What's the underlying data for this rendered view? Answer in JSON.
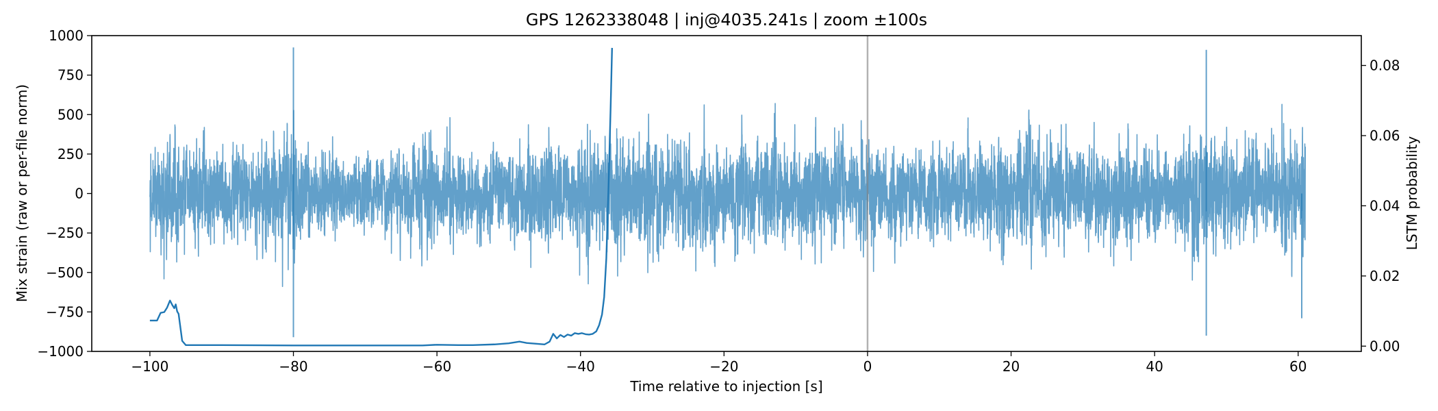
{
  "chart_data": {
    "type": "line",
    "title": "GPS 1262338048 | inj@4035.241s | zoom ±100s",
    "xlabel": "Time relative to injection [s]",
    "ylabel_left": "Mix strain (raw or per-file norm)",
    "ylabel_right": "LSTM probability",
    "xlim": [
      -108.1,
      68.8
    ],
    "ylim_left": [
      -1000,
      1000
    ],
    "ylim_right": [
      -0.0015,
      0.0885
    ],
    "x_ticks": [
      -100,
      -80,
      -60,
      -40,
      -20,
      0,
      20,
      40,
      60
    ],
    "y_left_ticks": [
      -1000,
      -750,
      -500,
      -250,
      0,
      250,
      500,
      750,
      1000
    ],
    "y_right_ticks": [
      0.0,
      0.02,
      0.04,
      0.06,
      0.08
    ],
    "x_tick_labels": [
      "−100",
      "−80",
      "−60",
      "−40",
      "−20",
      "0",
      "20",
      "40",
      "60"
    ],
    "y_left_tick_labels": [
      "−1000",
      "−750",
      "−500",
      "−250",
      "0",
      "250",
      "500",
      "750",
      "1000"
    ],
    "y_right_tick_labels": [
      "0.00",
      "0.02",
      "0.04",
      "0.06",
      "0.08"
    ],
    "injection_marker_x": 0,
    "grid": false,
    "series": [
      {
        "axis": "left",
        "color": "#1f77b4",
        "opacity": 0.7,
        "x_range": [
          -100,
          61
        ],
        "typical_amplitude": 300,
        "burst_envelope": [
          [
            -100,
            450
          ],
          [
            -99,
            700
          ],
          [
            -96,
            600
          ],
          [
            -90,
            550
          ],
          [
            -88,
            400
          ],
          [
            -85,
            500
          ],
          [
            -80.2,
            950
          ],
          [
            -79.5,
            520
          ],
          [
            -75,
            450
          ],
          [
            -70,
            400
          ],
          [
            -65,
            500
          ],
          [
            -62,
            650
          ],
          [
            -58,
            520
          ],
          [
            -55,
            450
          ],
          [
            -50,
            500
          ],
          [
            -46,
            620
          ],
          [
            -43,
            480
          ],
          [
            -38,
            650
          ],
          [
            -35,
            720
          ],
          [
            -32,
            650
          ],
          [
            -25,
            620
          ],
          [
            -18,
            680
          ],
          [
            -10,
            600
          ],
          [
            -5,
            650
          ],
          [
            1,
            580
          ],
          [
            5,
            520
          ],
          [
            12,
            480
          ],
          [
            18,
            600
          ],
          [
            20,
            820
          ],
          [
            22,
            780
          ],
          [
            24,
            700
          ],
          [
            27,
            620
          ],
          [
            30,
            520
          ],
          [
            36,
            560
          ],
          [
            42,
            450
          ],
          [
            46,
            880
          ],
          [
            47.3,
            1000
          ],
          [
            48,
            700
          ],
          [
            52,
            480
          ],
          [
            56,
            600
          ],
          [
            58,
            560
          ],
          [
            61,
            750
          ]
        ],
        "spikes": [
          {
            "x": -80,
            "y": 925
          },
          {
            "x": -80,
            "y": -910
          },
          {
            "x": 47.2,
            "y": 910
          },
          {
            "x": 47.2,
            "y": -900
          },
          {
            "x": 60.5,
            "y": -790
          }
        ]
      },
      {
        "axis": "right",
        "color": "#1f77b4",
        "x": [
          -100,
          -99,
          -98.5,
          -98,
          -97.6,
          -97.2,
          -96.9,
          -96.6,
          -96.4,
          -96.2,
          -96.0,
          -95.5,
          -95.0,
          -90,
          -80,
          -70,
          -62,
          -60,
          -57,
          -55,
          -52,
          -50,
          -48.5,
          -47.5,
          -45,
          -44.3,
          -43.8,
          -43.3,
          -42.8,
          -42.3,
          -41.8,
          -41.3,
          -40.8,
          -40.3,
          -39.8,
          -39.3,
          -38.8,
          -38.3,
          -37.8,
          -37.4,
          -37.0,
          -36.7,
          -36.4,
          -36.1,
          -35.8,
          -35.6
        ],
        "y": [
          0.0073,
          0.0073,
          0.0095,
          0.0097,
          0.011,
          0.013,
          0.0118,
          0.0108,
          0.0119,
          0.0099,
          0.0092,
          0.0015,
          0.0003,
          0.0003,
          0.0002,
          0.0002,
          0.0002,
          0.0004,
          0.0003,
          0.0003,
          0.0005,
          0.0008,
          0.0013,
          0.0009,
          0.0005,
          0.0013,
          0.0035,
          0.0022,
          0.0032,
          0.0026,
          0.0033,
          0.003,
          0.0037,
          0.0035,
          0.0037,
          0.0034,
          0.0033,
          0.0035,
          0.0042,
          0.006,
          0.009,
          0.014,
          0.025,
          0.045,
          0.068,
          0.085
        ]
      }
    ]
  }
}
